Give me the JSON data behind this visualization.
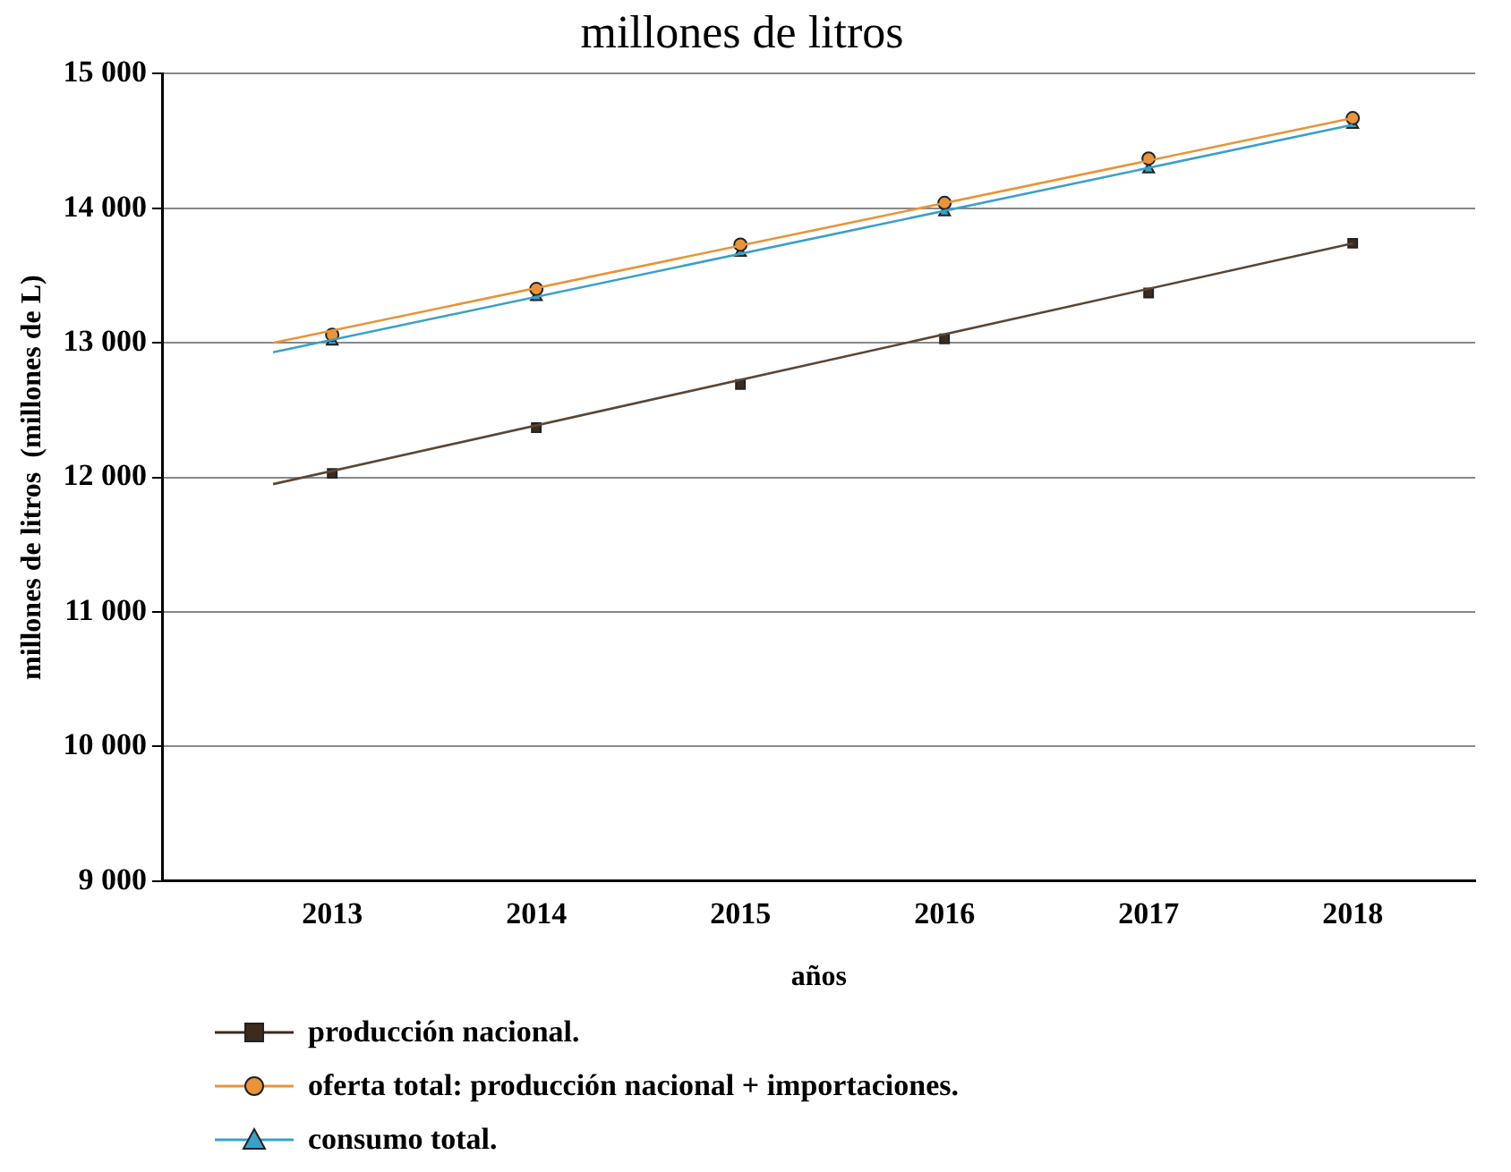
{
  "chart_data": {
    "type": "scatter",
    "title": "millones de litros",
    "xlabel": "años",
    "ylabel": "millones de litros  (millones de L)",
    "xlim": [
      2012.17,
      2018.6
    ],
    "xticks": [
      2013,
      2014,
      2015,
      2016,
      2017,
      2018
    ],
    "ylim": [
      9000,
      15000
    ],
    "yticks": [
      {
        "value": 9000,
        "label": "9 000"
      },
      {
        "value": 10000,
        "label": "10 000"
      },
      {
        "value": 11000,
        "label": "11 000"
      },
      {
        "value": 12000,
        "label": "12 000"
      },
      {
        "value": 13000,
        "label": "13 000"
      },
      {
        "value": 14000,
        "label": "14 000"
      },
      {
        "value": 15000,
        "label": "15 000"
      }
    ],
    "grid": "y",
    "legend": "bottom left",
    "series": [
      {
        "type": "line",
        "color": "#5a4636",
        "x": [
          2012.71,
          2018
        ],
        "values": [
          11950,
          13740
        ],
        "marker": "none"
      },
      {
        "type": "line",
        "color": "#e8943a",
        "x": [
          2012.71,
          2018
        ],
        "values": [
          13000,
          14670
        ],
        "marker": "none"
      },
      {
        "type": "line",
        "color": "#3aa0c8",
        "x": [
          2012.71,
          2018
        ],
        "values": [
          12930,
          14620
        ],
        "marker": "none"
      },
      {
        "name": "producción nacional.",
        "color": "#3d2b1f",
        "x": [
          2013,
          2014,
          2015,
          2016,
          2017,
          2018
        ],
        "values": [
          12030,
          12370,
          12690,
          13030,
          13370,
          13740
        ],
        "marker": "square"
      },
      {
        "name": "oferta total: producción nacional + importaciones.",
        "color": "#e8943a",
        "x": [
          2013,
          2014,
          2015,
          2016,
          2017,
          2018
        ],
        "values": [
          13060,
          13400,
          13730,
          14040,
          14370,
          14670
        ],
        "marker": "circle"
      },
      {
        "name": "consumo total.",
        "color": "#3aa0c8",
        "x": [
          2013,
          2014,
          2015,
          2016,
          2017,
          2018
        ],
        "values": [
          13010,
          13340,
          13670,
          13970,
          14290,
          14620
        ],
        "marker": "triangle"
      }
    ]
  }
}
